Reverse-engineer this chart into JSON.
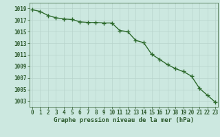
{
  "x": [
    0,
    1,
    2,
    3,
    4,
    5,
    6,
    7,
    8,
    9,
    10,
    11,
    12,
    13,
    14,
    15,
    16,
    17,
    18,
    19,
    20,
    21,
    22,
    23
  ],
  "y": [
    1018.8,
    1018.5,
    1017.8,
    1017.4,
    1017.2,
    1017.1,
    1016.7,
    1016.6,
    1016.6,
    1016.5,
    1016.5,
    1015.2,
    1015.0,
    1013.5,
    1013.1,
    1011.1,
    1010.2,
    1009.3,
    1008.6,
    1008.1,
    1007.3,
    1005.2,
    1004.0,
    1002.8
  ],
  "line_color": "#2d6a2d",
  "marker": "+",
  "marker_size": 4,
  "line_width": 1.0,
  "bg_color": "#cce8e0",
  "grid_color": "#b8d4cc",
  "text_color": "#2d5a2d",
  "xlabel": "Graphe pression niveau de la mer (hPa)",
  "ylim_min": 1002,
  "ylim_max": 1020,
  "yticks": [
    1003,
    1005,
    1007,
    1009,
    1011,
    1013,
    1015,
    1017,
    1019
  ],
  "xticks": [
    0,
    1,
    2,
    3,
    4,
    5,
    6,
    7,
    8,
    9,
    10,
    11,
    12,
    13,
    14,
    15,
    16,
    17,
    18,
    19,
    20,
    21,
    22,
    23
  ],
  "xlabel_fontsize": 6.5,
  "tick_fontsize": 5.5
}
